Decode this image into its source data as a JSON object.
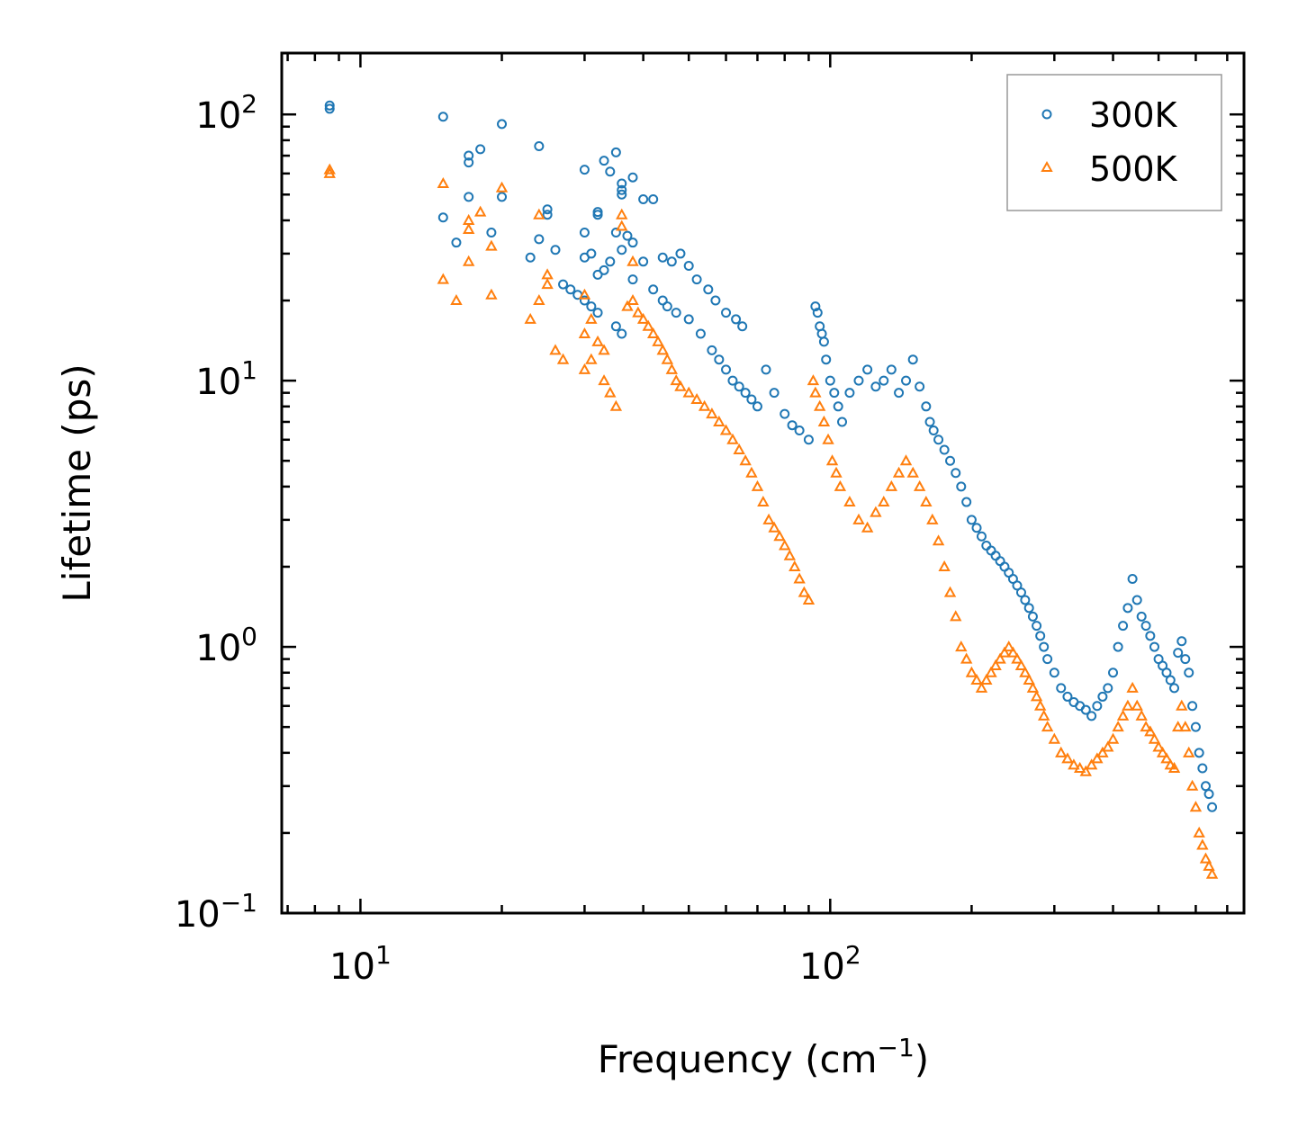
{
  "chart_data": {
    "type": "scatter",
    "xscale": "log",
    "yscale": "log",
    "xlim": [
      6.8,
      760
    ],
    "ylim": [
      0.1,
      170
    ],
    "xlabel": "Frequency (cm",
    "xlabel_sup": "−1",
    "xlabel_end": ")",
    "ylabel": "Lifetime (ps)",
    "x_ticks": [
      {
        "value": 10,
        "base": "10",
        "exp": "1"
      },
      {
        "value": 100,
        "base": "10",
        "exp": "2"
      }
    ],
    "y_ticks": [
      {
        "value": 0.1,
        "base": "10",
        "exp": "−1"
      },
      {
        "value": 1,
        "base": "10",
        "exp": "0"
      },
      {
        "value": 10,
        "base": "10",
        "exp": "1"
      },
      {
        "value": 100,
        "base": "10",
        "exp": "2"
      }
    ],
    "legend_position": "top-right",
    "series": [
      {
        "name": "300K",
        "marker": "circle",
        "color": "#1f77b4",
        "points": [
          [
            8.6,
            108
          ],
          [
            8.6,
            105
          ],
          [
            15,
            98
          ],
          [
            20,
            92
          ],
          [
            24,
            76
          ],
          [
            18,
            74
          ],
          [
            17,
            70
          ],
          [
            17,
            66
          ],
          [
            35,
            72
          ],
          [
            33,
            67
          ],
          [
            30,
            62
          ],
          [
            34,
            61
          ],
          [
            38,
            58
          ],
          [
            36,
            55
          ],
          [
            36,
            52
          ],
          [
            36,
            50
          ],
          [
            42,
            48
          ],
          [
            40,
            48
          ],
          [
            20,
            49
          ],
          [
            17,
            49
          ],
          [
            25,
            44
          ],
          [
            25,
            42
          ],
          [
            32,
            42
          ],
          [
            32,
            43
          ],
          [
            15,
            41
          ],
          [
            19,
            36
          ],
          [
            16,
            33
          ],
          [
            24,
            34
          ],
          [
            30,
            36
          ],
          [
            35,
            36
          ],
          [
            37,
            35
          ],
          [
            38,
            33
          ],
          [
            36,
            31
          ],
          [
            26,
            31
          ],
          [
            23,
            29
          ],
          [
            31,
            30
          ],
          [
            30,
            29
          ],
          [
            34,
            28
          ],
          [
            33,
            26
          ],
          [
            32,
            25
          ],
          [
            38,
            24
          ],
          [
            27,
            23
          ],
          [
            28,
            22
          ],
          [
            29,
            21
          ],
          [
            30,
            20
          ],
          [
            31,
            19
          ],
          [
            32,
            18
          ],
          [
            35,
            16
          ],
          [
            36,
            15
          ],
          [
            40,
            28
          ],
          [
            44,
            29
          ],
          [
            46,
            28
          ],
          [
            48,
            30
          ],
          [
            50,
            27
          ],
          [
            52,
            24
          ],
          [
            55,
            22
          ],
          [
            57,
            20
          ],
          [
            60,
            18
          ],
          [
            63,
            17
          ],
          [
            65,
            16
          ],
          [
            42,
            22
          ],
          [
            44,
            20
          ],
          [
            45,
            19
          ],
          [
            47,
            18
          ],
          [
            50,
            17
          ],
          [
            53,
            15
          ],
          [
            56,
            13
          ],
          [
            58,
            12
          ],
          [
            60,
            11
          ],
          [
            62,
            10
          ],
          [
            64,
            9.5
          ],
          [
            66,
            9
          ],
          [
            68,
            8.5
          ],
          [
            70,
            8
          ],
          [
            73,
            11
          ],
          [
            76,
            9
          ],
          [
            80,
            7.5
          ],
          [
            83,
            6.8
          ],
          [
            86,
            6.5
          ],
          [
            90,
            6
          ],
          [
            93,
            19
          ],
          [
            94,
            18
          ],
          [
            95,
            16
          ],
          [
            96,
            15
          ],
          [
            97,
            14
          ],
          [
            98,
            12
          ],
          [
            100,
            10
          ],
          [
            102,
            9
          ],
          [
            104,
            8
          ],
          [
            106,
            7
          ],
          [
            110,
            9
          ],
          [
            115,
            10
          ],
          [
            120,
            11
          ],
          [
            125,
            9.5
          ],
          [
            130,
            10
          ],
          [
            135,
            11
          ],
          [
            140,
            9
          ],
          [
            145,
            10
          ],
          [
            150,
            12
          ],
          [
            155,
            9.5
          ],
          [
            160,
            8
          ],
          [
            163,
            7
          ],
          [
            166,
            6.5
          ],
          [
            170,
            6
          ],
          [
            175,
            5.5
          ],
          [
            180,
            5
          ],
          [
            185,
            4.5
          ],
          [
            190,
            4
          ],
          [
            195,
            3.5
          ],
          [
            200,
            3
          ],
          [
            205,
            2.8
          ],
          [
            210,
            2.6
          ],
          [
            215,
            2.4
          ],
          [
            220,
            2.3
          ],
          [
            225,
            2.2
          ],
          [
            230,
            2.1
          ],
          [
            235,
            2
          ],
          [
            240,
            1.9
          ],
          [
            245,
            1.8
          ],
          [
            250,
            1.7
          ],
          [
            255,
            1.6
          ],
          [
            260,
            1.5
          ],
          [
            265,
            1.4
          ],
          [
            270,
            1.3
          ],
          [
            275,
            1.2
          ],
          [
            280,
            1.1
          ],
          [
            285,
            1
          ],
          [
            290,
            0.9
          ],
          [
            300,
            0.8
          ],
          [
            310,
            0.7
          ],
          [
            320,
            0.65
          ],
          [
            330,
            0.62
          ],
          [
            340,
            0.6
          ],
          [
            350,
            0.58
          ],
          [
            360,
            0.55
          ],
          [
            370,
            0.6
          ],
          [
            380,
            0.65
          ],
          [
            390,
            0.7
          ],
          [
            400,
            0.8
          ],
          [
            410,
            1
          ],
          [
            420,
            1.2
          ],
          [
            430,
            1.4
          ],
          [
            440,
            1.8
          ],
          [
            450,
            1.5
          ],
          [
            460,
            1.3
          ],
          [
            470,
            1.2
          ],
          [
            480,
            1.1
          ],
          [
            490,
            1
          ],
          [
            500,
            0.9
          ],
          [
            510,
            0.85
          ],
          [
            520,
            0.8
          ],
          [
            530,
            0.75
          ],
          [
            540,
            0.7
          ],
          [
            550,
            0.95
          ],
          [
            560,
            1.05
          ],
          [
            570,
            0.9
          ],
          [
            580,
            0.8
          ],
          [
            590,
            0.6
          ],
          [
            600,
            0.5
          ],
          [
            610,
            0.4
          ],
          [
            620,
            0.35
          ],
          [
            630,
            0.3
          ],
          [
            640,
            0.28
          ],
          [
            650,
            0.25
          ]
        ]
      },
      {
        "name": "500K",
        "marker": "triangle",
        "color": "#ff7f0e",
        "points": [
          [
            8.6,
            62
          ],
          [
            8.6,
            60
          ],
          [
            15,
            55
          ],
          [
            20,
            53
          ],
          [
            18,
            43
          ],
          [
            17,
            40
          ],
          [
            17,
            37
          ],
          [
            24,
            42
          ],
          [
            19,
            32
          ],
          [
            17,
            28
          ],
          [
            16,
            20
          ],
          [
            15,
            24
          ],
          [
            19,
            21
          ],
          [
            23,
            17
          ],
          [
            25,
            25
          ],
          [
            25,
            23
          ],
          [
            24,
            20
          ],
          [
            26,
            13
          ],
          [
            27,
            12
          ],
          [
            30,
            21
          ],
          [
            31,
            17
          ],
          [
            30,
            15
          ],
          [
            32,
            14
          ],
          [
            33,
            13
          ],
          [
            31,
            12
          ],
          [
            30,
            11
          ],
          [
            33,
            10
          ],
          [
            34,
            9
          ],
          [
            35,
            8
          ],
          [
            36,
            42
          ],
          [
            36,
            38
          ],
          [
            38,
            28
          ],
          [
            38,
            20
          ],
          [
            37,
            19
          ],
          [
            39,
            18
          ],
          [
            40,
            17
          ],
          [
            41,
            16
          ],
          [
            42,
            15
          ],
          [
            43,
            14
          ],
          [
            44,
            13
          ],
          [
            45,
            12
          ],
          [
            46,
            11
          ],
          [
            47,
            10
          ],
          [
            48,
            9.5
          ],
          [
            50,
            9
          ],
          [
            52,
            8.5
          ],
          [
            54,
            8
          ],
          [
            56,
            7.5
          ],
          [
            58,
            7
          ],
          [
            60,
            6.5
          ],
          [
            62,
            6
          ],
          [
            64,
            5.5
          ],
          [
            66,
            5
          ],
          [
            68,
            4.5
          ],
          [
            70,
            4
          ],
          [
            72,
            3.5
          ],
          [
            74,
            3
          ],
          [
            76,
            2.8
          ],
          [
            78,
            2.6
          ],
          [
            80,
            2.4
          ],
          [
            82,
            2.2
          ],
          [
            84,
            2
          ],
          [
            86,
            1.8
          ],
          [
            88,
            1.6
          ],
          [
            90,
            1.5
          ],
          [
            92,
            10
          ],
          [
            93,
            9
          ],
          [
            95,
            8
          ],
          [
            97,
            7
          ],
          [
            99,
            6
          ],
          [
            101,
            5
          ],
          [
            103,
            4.5
          ],
          [
            105,
            4
          ],
          [
            110,
            3.5
          ],
          [
            115,
            3
          ],
          [
            120,
            2.8
          ],
          [
            125,
            3.2
          ],
          [
            130,
            3.5
          ],
          [
            135,
            4
          ],
          [
            140,
            4.5
          ],
          [
            145,
            5
          ],
          [
            150,
            4.5
          ],
          [
            155,
            4
          ],
          [
            160,
            3.5
          ],
          [
            165,
            3
          ],
          [
            170,
            2.5
          ],
          [
            175,
            2
          ],
          [
            180,
            1.6
          ],
          [
            185,
            1.3
          ],
          [
            190,
            1
          ],
          [
            195,
            0.9
          ],
          [
            200,
            0.8
          ],
          [
            205,
            0.75
          ],
          [
            210,
            0.7
          ],
          [
            215,
            0.75
          ],
          [
            220,
            0.8
          ],
          [
            225,
            0.85
          ],
          [
            230,
            0.9
          ],
          [
            235,
            0.95
          ],
          [
            240,
            1
          ],
          [
            245,
            0.95
          ],
          [
            250,
            0.9
          ],
          [
            255,
            0.85
          ],
          [
            260,
            0.8
          ],
          [
            265,
            0.75
          ],
          [
            270,
            0.7
          ],
          [
            275,
            0.65
          ],
          [
            280,
            0.6
          ],
          [
            285,
            0.55
          ],
          [
            290,
            0.5
          ],
          [
            300,
            0.45
          ],
          [
            310,
            0.4
          ],
          [
            320,
            0.38
          ],
          [
            330,
            0.36
          ],
          [
            340,
            0.35
          ],
          [
            350,
            0.34
          ],
          [
            360,
            0.36
          ],
          [
            370,
            0.38
          ],
          [
            380,
            0.4
          ],
          [
            390,
            0.42
          ],
          [
            400,
            0.45
          ],
          [
            410,
            0.5
          ],
          [
            420,
            0.55
          ],
          [
            430,
            0.6
          ],
          [
            440,
            0.7
          ],
          [
            450,
            0.6
          ],
          [
            460,
            0.55
          ],
          [
            470,
            0.5
          ],
          [
            480,
            0.48
          ],
          [
            490,
            0.45
          ],
          [
            500,
            0.42
          ],
          [
            510,
            0.4
          ],
          [
            520,
            0.38
          ],
          [
            530,
            0.36
          ],
          [
            540,
            0.35
          ],
          [
            550,
            0.5
          ],
          [
            560,
            0.6
          ],
          [
            570,
            0.5
          ],
          [
            580,
            0.4
          ],
          [
            590,
            0.3
          ],
          [
            600,
            0.25
          ],
          [
            610,
            0.2
          ],
          [
            620,
            0.18
          ],
          [
            630,
            0.16
          ],
          [
            640,
            0.15
          ],
          [
            650,
            0.14
          ]
        ]
      }
    ]
  }
}
